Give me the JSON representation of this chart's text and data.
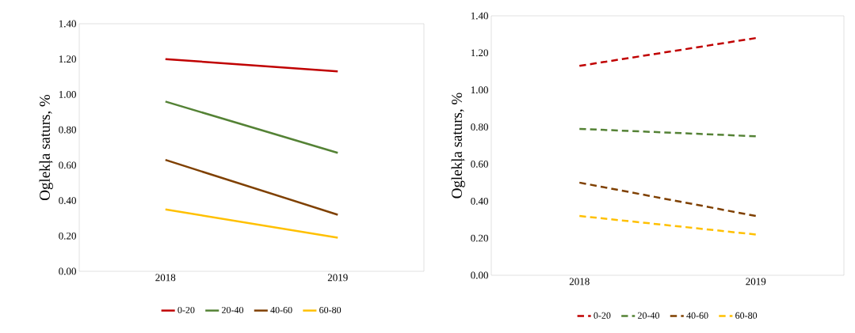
{
  "chart_data": [
    {
      "type": "line",
      "ylabel": "Oglekļa saturs, %",
      "categories": [
        "2018",
        "2019"
      ],
      "line_style": "solid",
      "legend": "bottom",
      "ylim": [
        0,
        1.4
      ],
      "yticks": [
        {
          "value": 0,
          "label": "0.00"
        },
        {
          "value": 0.2,
          "label": "0.20"
        },
        {
          "value": 0.4,
          "label": "0.40"
        },
        {
          "value": 0.6,
          "label": "0.60"
        },
        {
          "value": 0.8,
          "label": "0.80"
        },
        {
          "value": 1.0,
          "label": "1.00"
        },
        {
          "value": 1.2,
          "label": "1.20"
        },
        {
          "value": 1.4,
          "label": "1.40"
        }
      ],
      "series": [
        {
          "name": "0-20",
          "color": "#c00000",
          "values": [
            1.2,
            1.13
          ]
        },
        {
          "name": "20-40",
          "color": "#548235",
          "values": [
            0.96,
            0.67
          ]
        },
        {
          "name": "40-60",
          "color": "#7f4000",
          "values": [
            0.63,
            0.32
          ]
        },
        {
          "name": "60-80",
          "color": "#ffc000",
          "values": [
            0.35,
            0.19
          ]
        }
      ]
    },
    {
      "type": "line",
      "ylabel": "Oglekļa saturs, %",
      "categories": [
        "2018",
        "2019"
      ],
      "line_style": "dashed",
      "legend": "bottom",
      "ylim": [
        0,
        1.4
      ],
      "yticks": [
        {
          "value": 0,
          "label": "0.00"
        },
        {
          "value": 0.2,
          "label": "0.20"
        },
        {
          "value": 0.4,
          "label": "0.40"
        },
        {
          "value": 0.6,
          "label": "0.60"
        },
        {
          "value": 0.8,
          "label": "0.80"
        },
        {
          "value": 1.0,
          "label": "1.00"
        },
        {
          "value": 1.2,
          "label": "1.20"
        },
        {
          "value": 1.4,
          "label": "1.40"
        }
      ],
      "series": [
        {
          "name": "0-20",
          "color": "#c00000",
          "values": [
            1.13,
            1.28
          ]
        },
        {
          "name": "20-40",
          "color": "#548235",
          "values": [
            0.79,
            0.75
          ]
        },
        {
          "name": "40-60",
          "color": "#7f4000",
          "values": [
            0.5,
            0.32
          ]
        },
        {
          "name": "60-80",
          "color": "#ffc000",
          "values": [
            0.32,
            0.22
          ]
        }
      ]
    }
  ]
}
